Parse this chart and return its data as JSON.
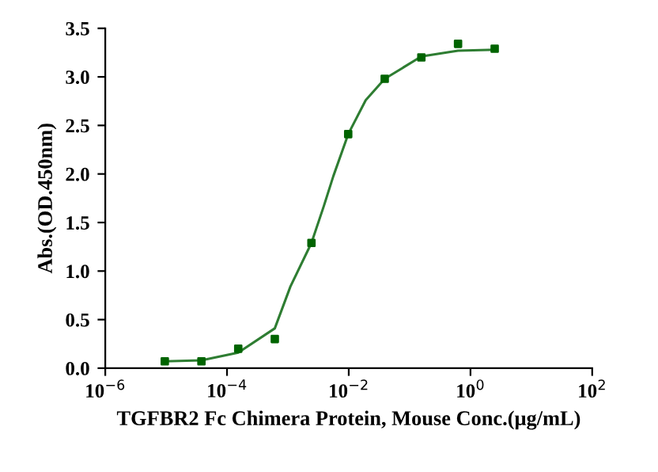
{
  "chart_data": {
    "type": "scatter",
    "xlabel": "TGFBR2 Fc Chimera Protein, Mouse Conc.(μg/mL)",
    "ylabel": "Abs.(OD.450nm)",
    "log": "x",
    "grid": false,
    "legend": false,
    "xlim": [
      1e-06,
      100
    ],
    "xticks": [
      {
        "value": 1e-06,
        "label": "10$^{−6}$"
      },
      {
        "value": 0.0001,
        "label": "10$^{−4}$"
      },
      {
        "value": 0.01,
        "label": "10$^{−2}$"
      },
      {
        "value": 1,
        "label": "10$^{0}$"
      },
      {
        "value": 100,
        "label": "10$^{2}$"
      }
    ],
    "ylim": [
      0,
      3.5
    ],
    "yticks": [
      {
        "value": 0,
        "label": "0.0"
      },
      {
        "value": 0.5,
        "label": "0.5"
      },
      {
        "value": 1,
        "label": "1.0"
      },
      {
        "value": 1.5,
        "label": "1.5"
      },
      {
        "value": 2,
        "label": "2.0"
      },
      {
        "value": 2.5,
        "label": "2.5"
      },
      {
        "value": 3,
        "label": "3.0"
      },
      {
        "value": 3.5,
        "label": "3.5"
      }
    ],
    "series": [
      {
        "marker": "square",
        "color": "#006400",
        "x": [
          9.5e-06,
          3.8e-05,
          0.000153,
          0.00061,
          0.00244,
          0.0098,
          0.039,
          0.156,
          0.625,
          2.5
        ],
        "values": [
          0.07,
          0.07,
          0.2,
          0.3,
          1.29,
          2.41,
          2.98,
          3.2,
          3.34,
          3.29
        ]
      },
      {
        "type": "line",
        "marker": "none",
        "line_style": "solid",
        "color": "#2e7d32",
        "x": [
          9.5e-06,
          3.8e-05,
          0.000153,
          0.00061,
          0.0011,
          0.00244,
          0.0039,
          0.0056,
          0.0098,
          0.019,
          0.039,
          0.156,
          0.625,
          2.5
        ],
        "values": [
          0.07,
          0.08,
          0.16,
          0.41,
          0.84,
          1.29,
          1.67,
          1.98,
          2.41,
          2.76,
          2.98,
          3.21,
          3.27,
          3.28
        ]
      }
    ]
  }
}
